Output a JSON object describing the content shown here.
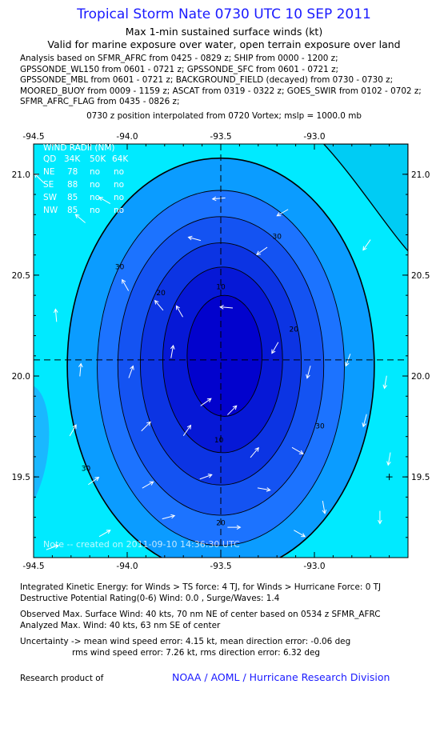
{
  "header": {
    "title": "Tropical Storm Nate 0730 UTC 10 SEP 2011",
    "subtitle1": "Max 1-min sustained surface winds (kt)",
    "subtitle2": "Valid for marine exposure over water, open terrain exposure over land",
    "analysis_lines": [
      "Analysis based on SFMR_AFRC from 0425 - 0829 z; SHIP from 0000 - 1200 z;",
      "GPSSONDE_WL150 from 0601 - 0721 z; GPSSONDE_SFC from 0601 - 0721 z;",
      "GPSSONDE_MBL from 0601 - 0721 z; BACKGROUND_FIELD (decayed) from 0730 - 0730 z;",
      "MOORED_BUOY from 0009 - 1159 z; ASCAT from 0319 - 0322 z; GOES_SWIR from 0102 - 0702 z;",
      "SFMR_AFRC_FLAG from 0435 - 0826 z;"
    ],
    "position_line": "0730 z position interpolated from 0720 Vortex; mslp = 1000.0 mb"
  },
  "wind_radii": {
    "title": "WIND RADII (NM)",
    "columns": [
      "QD",
      "34K",
      "50K",
      "64K"
    ],
    "rows": [
      [
        "NE",
        "78",
        "no",
        "no"
      ],
      [
        "SE",
        "88",
        "no",
        "no"
      ],
      [
        "SW",
        "85",
        "no",
        "no"
      ],
      [
        "NW",
        "85",
        "no",
        "no"
      ]
    ]
  },
  "note": "Note -- created on 2011-09-10 14:36:30 UTC",
  "chart_data": {
    "type": "heatmap",
    "xlim": [
      -94.5,
      -92.5
    ],
    "ylim": [
      19.1,
      21.15
    ],
    "x_ticks": [
      "-94.5",
      "-94.0",
      "-93.5",
      "-93.0"
    ],
    "x_tick_values": [
      -94.5,
      -94.0,
      -93.5,
      -93.0
    ],
    "y_ticks": [
      "21.0",
      "20.5",
      "20.0",
      "19.5"
    ],
    "y_tick_values": [
      21.0,
      20.5,
      20.0,
      19.5
    ],
    "center": {
      "lon": -93.5,
      "lat": 20.08
    },
    "contours": [
      {
        "level": 35,
        "label": "",
        "color": "#0b9cff",
        "cx": -93.5,
        "cy": 20.05,
        "rx": 0.82,
        "ry": 1.03
      },
      {
        "level": 30,
        "label": "30",
        "color": "#1c73ff",
        "cx": -93.5,
        "cy": 20.04,
        "rx": 0.66,
        "ry": 0.88
      },
      {
        "level": 25,
        "label": "",
        "color": "#1453f2",
        "cx": -93.5,
        "cy": 20.05,
        "rx": 0.55,
        "ry": 0.74
      },
      {
        "level": 20,
        "label": "20",
        "color": "#0c34e3",
        "cx": -93.5,
        "cy": 20.06,
        "rx": 0.43,
        "ry": 0.6
      },
      {
        "level": 15,
        "label": "",
        "color": "#0618d6",
        "cx": -93.49,
        "cy": 20.08,
        "rx": 0.32,
        "ry": 0.46
      },
      {
        "level": 10,
        "label": "10",
        "color": "#0202cd",
        "cx": -93.48,
        "cy": 20.1,
        "rx": 0.2,
        "ry": 0.3
      }
    ],
    "contour_labels": [
      {
        "text": "30",
        "lon": -93.2,
        "lat": 20.68
      },
      {
        "text": "30",
        "lon": -94.04,
        "lat": 20.53
      },
      {
        "text": "30",
        "lon": -94.22,
        "lat": 19.53
      },
      {
        "text": "30",
        "lon": -92.97,
        "lat": 19.74
      },
      {
        "text": "20",
        "lon": -93.82,
        "lat": 20.4
      },
      {
        "text": "20",
        "lon": -93.11,
        "lat": 20.22
      },
      {
        "text": "20",
        "lon": -93.5,
        "lat": 19.26
      },
      {
        "text": "10",
        "lon": -93.5,
        "lat": 20.43
      },
      {
        "text": "10",
        "lon": -93.51,
        "lat": 19.67
      }
    ],
    "storm_marker": {
      "lon": -92.6,
      "lat": 19.5
    },
    "wind_vectors": [
      [
        -94.47,
        20.98,
        315
      ],
      [
        -94.12,
        20.87,
        300
      ],
      [
        -93.51,
        20.88,
        265
      ],
      [
        -93.17,
        20.81,
        240
      ],
      [
        -94.25,
        20.78,
        310
      ],
      [
        -93.64,
        20.68,
        285
      ],
      [
        -93.28,
        20.62,
        235
      ],
      [
        -92.72,
        20.65,
        215
      ],
      [
        -94.01,
        20.45,
        330
      ],
      [
        -93.83,
        20.35,
        320
      ],
      [
        -93.72,
        20.32,
        330
      ],
      [
        -93.47,
        20.34,
        275
      ],
      [
        -94.38,
        20.3,
        355
      ],
      [
        -93.21,
        20.14,
        210
      ],
      [
        -93.03,
        20.02,
        195
      ],
      [
        -92.82,
        20.08,
        200
      ],
      [
        -94.25,
        20.03,
        5
      ],
      [
        -93.98,
        20.02,
        20
      ],
      [
        -93.76,
        20.12,
        10
      ],
      [
        -93.58,
        19.87,
        55
      ],
      [
        -93.44,
        19.83,
        45
      ],
      [
        -93.68,
        19.73,
        35
      ],
      [
        -92.73,
        19.78,
        195
      ],
      [
        -92.62,
        19.97,
        190
      ],
      [
        -94.29,
        19.73,
        30
      ],
      [
        -93.9,
        19.75,
        45
      ],
      [
        -93.32,
        19.62,
        40
      ],
      [
        -93.09,
        19.63,
        120
      ],
      [
        -92.6,
        19.59,
        190
      ],
      [
        -94.18,
        19.48,
        55
      ],
      [
        -93.89,
        19.46,
        60
      ],
      [
        -93.58,
        19.5,
        70
      ],
      [
        -93.27,
        19.44,
        100
      ],
      [
        -92.95,
        19.35,
        170
      ],
      [
        -92.65,
        19.3,
        180
      ],
      [
        -94.12,
        19.22,
        60
      ],
      [
        -93.78,
        19.3,
        75
      ],
      [
        -93.43,
        19.25,
        90
      ],
      [
        -93.08,
        19.22,
        120
      ],
      [
        -94.4,
        19.15,
        70
      ]
    ],
    "grid": false,
    "legend": "top-left"
  },
  "colors": {
    "field_outer": "#00eaff",
    "title_blue": "#1a1aff"
  },
  "footer": {
    "ike_line": "Integrated Kinetic Energy:  for Winds > TS force: 4 TJ,  for Winds > Hurricane Force: 0 TJ",
    "dpr_line": "Destructive Potential Rating(0-6)   Wind: 0.0 , Surge/Waves: 1.4",
    "observed_line": "Observed Max. Surface Wind: 40 kts, 70 nm NE of center based on 0534 z SFMR_AFRC",
    "analyzed_line": "Analyzed Max. Wind: 40 kts, 63 nm SE of center",
    "uncertainty_line1": "Uncertainty -> mean wind speed error: 4.15 kt,   mean direction error:  -0.06 deg",
    "uncertainty_line2": "rms wind speed error: 7.26 kt,   rms direction error: 6.32 deg",
    "research_label": "Research product of",
    "org_label": "NOAA / AOML / Hurricane Research Division"
  }
}
